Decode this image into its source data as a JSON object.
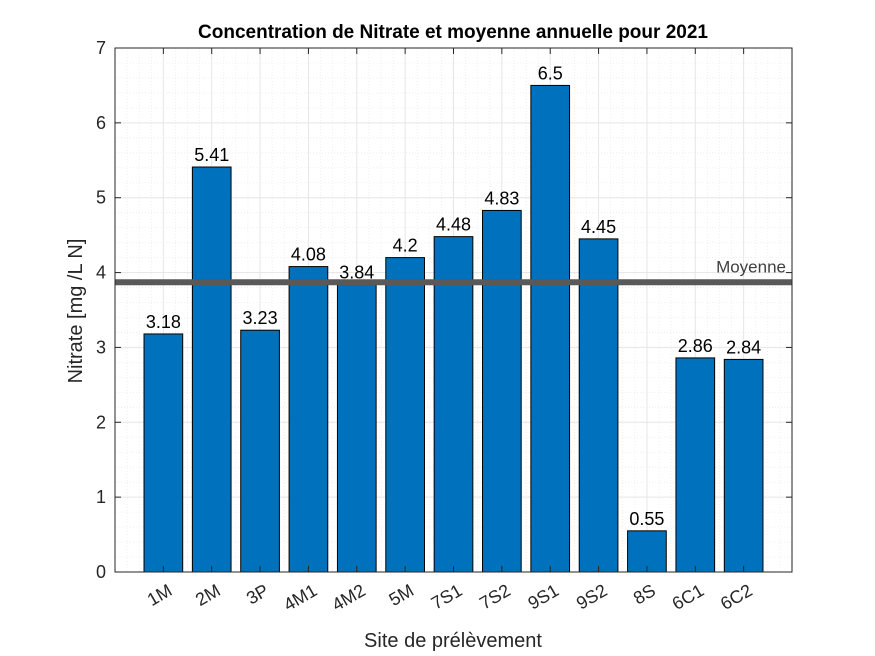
{
  "chart_data": {
    "type": "bar",
    "title": "Concentration de Nitrate et moyenne annuelle pour 2021",
    "xlabel": "Site de prélèvement",
    "ylabel": "Nitrate [mg /L N]",
    "categories": [
      "1M",
      "2M",
      "3P",
      "4M1",
      "4M2",
      "5M",
      "7S1",
      "7S2",
      "9S1",
      "9S2",
      "8S",
      "6C1",
      "6C2"
    ],
    "values": [
      3.18,
      5.41,
      3.23,
      4.08,
      3.84,
      4.2,
      4.48,
      4.83,
      6.5,
      4.45,
      0.55,
      2.86,
      2.84
    ],
    "data_labels": [
      "3.18",
      "5.41",
      "3.23",
      "4.08",
      "3.84",
      "4.2",
      "4.48",
      "4.83",
      "6.5",
      "4.45",
      "0.55",
      "2.86",
      "2.84"
    ],
    "ylim": [
      0,
      7
    ],
    "yticks": [
      "0",
      "1",
      "2",
      "3",
      "4",
      "5",
      "6",
      "7"
    ],
    "reference_line": {
      "label": "Moyenne",
      "value": 3.87
    },
    "grid": "major and minor",
    "colors": {
      "bar": "#0072BD",
      "reference_line": "#595959",
      "grid": "#e6e6e6"
    }
  }
}
